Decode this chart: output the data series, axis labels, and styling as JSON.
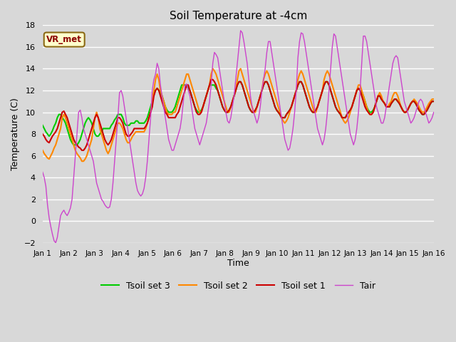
{
  "title": "Soil Temperature at -4cm",
  "xlabel": "Time",
  "ylabel": "Temperature (C)",
  "ylim": [
    -2,
    18
  ],
  "xlim": [
    0,
    15
  ],
  "background_color": "#d8d8d8",
  "plot_bg_color": "#d8d8d8",
  "grid_color": "white",
  "yticks": [
    -2,
    0,
    2,
    4,
    6,
    8,
    10,
    12,
    14,
    16,
    18
  ],
  "annotation_text": "VR_met",
  "annotation_bg": "#ffffcc",
  "annotation_border": "#8b6914",
  "annotation_text_color": "#8b0000",
  "tick_labels": [
    "Jan 1",
    "Jan 2",
    "Jan 3",
    "Jan 4",
    "Jan 5",
    "Jan 6",
    "Jan 7",
    "Jan 8",
    "Jan 9",
    "Jan 10",
    "Jan 11",
    "Jan 12",
    "Jan 13",
    "Jan 14",
    "Jan 15",
    "Jan 16"
  ],
  "series": {
    "Tair": {
      "color": "#cc44cc",
      "lw": 1.0
    },
    "Tsoil set 1": {
      "color": "#cc0000",
      "lw": 1.5
    },
    "Tsoil set 2": {
      "color": "#ff8800",
      "lw": 1.5
    },
    "Tsoil set 3": {
      "color": "#00cc00",
      "lw": 1.5
    }
  },
  "legend_loc": "lower center",
  "legend_ncol": 4,
  "tair": [
    4.5,
    4.0,
    3.2,
    1.5,
    0.3,
    -0.5,
    -1.2,
    -1.8,
    -2.0,
    -1.5,
    -0.5,
    0.5,
    0.8,
    1.0,
    0.7,
    0.5,
    0.8,
    1.2,
    2.0,
    4.0,
    6.0,
    8.0,
    10.0,
    10.2,
    9.5,
    8.5,
    8.0,
    7.5,
    7.0,
    6.5,
    6.0,
    5.5,
    4.5,
    3.5,
    3.0,
    2.5,
    2.0,
    1.8,
    1.5,
    1.3,
    1.2,
    1.3,
    2.0,
    3.5,
    5.5,
    7.5,
    9.5,
    11.8,
    12.0,
    11.5,
    10.5,
    9.5,
    8.5,
    7.5,
    6.5,
    5.5,
    4.5,
    3.5,
    2.8,
    2.5,
    2.3,
    2.5,
    3.0,
    4.0,
    5.5,
    7.5,
    9.5,
    12.0,
    13.0,
    13.5,
    14.5,
    14.0,
    12.5,
    11.5,
    10.5,
    9.5,
    8.5,
    7.5,
    7.0,
    6.5,
    6.5,
    7.0,
    7.5,
    8.0,
    8.5,
    9.5,
    11.0,
    12.5,
    12.6,
    12.0,
    11.5,
    10.5,
    9.5,
    8.5,
    8.0,
    7.5,
    7.0,
    7.5,
    8.0,
    8.5,
    9.0,
    10.0,
    11.0,
    12.5,
    14.5,
    15.5,
    15.3,
    15.0,
    14.0,
    13.0,
    12.0,
    11.0,
    10.0,
    9.2,
    9.0,
    9.5,
    10.5,
    11.5,
    13.0,
    14.5,
    16.0,
    17.5,
    17.3,
    16.5,
    15.5,
    14.5,
    13.0,
    11.5,
    10.5,
    10.0,
    9.5,
    9.0,
    9.5,
    10.5,
    12.0,
    13.0,
    14.0,
    15.5,
    16.5,
    16.5,
    15.5,
    14.5,
    13.5,
    12.5,
    11.5,
    10.5,
    9.5,
    8.5,
    7.5,
    7.0,
    6.5,
    6.7,
    7.5,
    8.5,
    10.0,
    12.0,
    15.0,
    16.5,
    17.3,
    17.2,
    16.5,
    15.5,
    14.5,
    13.5,
    12.5,
    11.5,
    10.5,
    9.5,
    8.5,
    8.0,
    7.5,
    7.0,
    7.5,
    8.5,
    10.0,
    12.0,
    14.0,
    16.0,
    17.2,
    17.0,
    16.0,
    15.0,
    14.0,
    13.0,
    12.0,
    11.0,
    10.0,
    9.0,
    8.0,
    7.5,
    7.0,
    7.5,
    8.5,
    10.0,
    12.0,
    14.5,
    17.0,
    17.0,
    16.5,
    15.5,
    14.5,
    13.5,
    12.5,
    11.5,
    10.5,
    10.0,
    9.5,
    9.0,
    9.0,
    9.5,
    10.5,
    11.5,
    12.5,
    13.5,
    14.5,
    15.0,
    15.2,
    15.0,
    14.0,
    13.0,
    12.0,
    11.0,
    10.5,
    10.0,
    9.5,
    9.0,
    9.2,
    9.5,
    10.0,
    10.5,
    11.0,
    11.2,
    11.0,
    10.5,
    10.0,
    9.5,
    9.0,
    9.2,
    9.5,
    10.0
  ],
  "tsoil1": [
    8.0,
    7.8,
    7.5,
    7.3,
    7.2,
    7.5,
    7.8,
    8.0,
    8.2,
    8.5,
    9.0,
    9.5,
    10.0,
    10.1,
    9.8,
    9.5,
    9.0,
    8.5,
    8.0,
    7.5,
    7.2,
    7.0,
    6.8,
    6.7,
    6.5,
    6.5,
    6.7,
    7.0,
    7.5,
    8.0,
    8.5,
    9.0,
    9.5,
    9.8,
    9.5,
    9.0,
    8.5,
    8.0,
    7.5,
    7.2,
    7.0,
    7.2,
    7.5,
    8.0,
    8.5,
    9.0,
    9.5,
    9.5,
    9.3,
    9.0,
    8.5,
    8.0,
    7.8,
    7.8,
    8.0,
    8.2,
    8.5,
    8.5,
    8.5,
    8.5,
    8.5,
    8.5,
    8.5,
    8.7,
    9.0,
    9.5,
    10.0,
    10.5,
    11.5,
    12.0,
    12.2,
    12.0,
    11.5,
    11.0,
    10.5,
    10.0,
    9.8,
    9.5,
    9.5,
    9.5,
    9.5,
    9.5,
    9.8,
    10.0,
    10.5,
    11.0,
    11.5,
    12.0,
    12.5,
    12.5,
    12.0,
    11.5,
    11.0,
    10.5,
    10.0,
    9.8,
    9.8,
    10.0,
    10.5,
    11.0,
    11.5,
    12.0,
    12.5,
    13.0,
    13.0,
    12.8,
    12.5,
    12.0,
    11.5,
    11.0,
    10.5,
    10.2,
    10.0,
    10.0,
    10.2,
    10.5,
    11.0,
    11.5,
    12.0,
    12.5,
    12.8,
    12.8,
    12.5,
    12.0,
    11.5,
    11.0,
    10.5,
    10.2,
    10.0,
    10.0,
    10.2,
    10.5,
    11.0,
    11.5,
    12.0,
    12.5,
    12.8,
    12.8,
    12.5,
    12.0,
    11.5,
    11.0,
    10.5,
    10.2,
    10.0,
    9.8,
    9.5,
    9.5,
    9.5,
    9.8,
    10.0,
    10.2,
    10.5,
    11.0,
    11.5,
    12.0,
    12.5,
    12.8,
    12.8,
    12.5,
    12.0,
    11.5,
    11.0,
    10.5,
    10.2,
    10.0,
    10.0,
    10.2,
    10.5,
    11.0,
    11.5,
    12.0,
    12.5,
    12.8,
    12.8,
    12.5,
    12.0,
    11.5,
    11.0,
    10.5,
    10.2,
    10.0,
    9.8,
    9.5,
    9.5,
    9.5,
    9.8,
    10.0,
    10.2,
    10.5,
    11.0,
    11.5,
    12.0,
    12.2,
    12.0,
    11.5,
    11.0,
    10.5,
    10.2,
    10.0,
    9.8,
    9.8,
    10.0,
    10.5,
    11.0,
    11.5,
    11.5,
    11.2,
    11.0,
    10.8,
    10.5,
    10.5,
    10.5,
    10.8,
    11.0,
    11.2,
    11.2,
    11.0,
    10.8,
    10.5,
    10.2,
    10.0,
    10.0,
    10.2,
    10.5,
    10.8,
    11.0,
    11.0,
    10.8,
    10.5,
    10.2,
    10.0,
    9.8,
    9.8,
    10.0,
    10.2,
    10.5,
    10.8,
    11.0,
    11.0
  ],
  "tsoil2": [
    6.5,
    6.2,
    6.0,
    5.8,
    5.7,
    6.0,
    6.3,
    6.7,
    7.0,
    7.5,
    8.0,
    8.5,
    9.5,
    9.8,
    9.5,
    9.0,
    8.5,
    8.0,
    7.5,
    7.0,
    6.5,
    6.2,
    6.0,
    5.8,
    5.5,
    5.5,
    5.7,
    6.0,
    6.5,
    7.0,
    7.5,
    8.5,
    9.5,
    10.0,
    9.5,
    8.5,
    8.0,
    7.5,
    7.0,
    6.5,
    6.2,
    6.5,
    7.0,
    7.5,
    8.0,
    8.5,
    9.0,
    9.0,
    8.8,
    8.5,
    8.0,
    7.5,
    7.2,
    7.2,
    7.5,
    7.8,
    8.0,
    8.2,
    8.2,
    8.2,
    8.2,
    8.2,
    8.2,
    8.5,
    9.0,
    9.5,
    10.0,
    11.0,
    12.0,
    13.0,
    13.5,
    13.0,
    12.0,
    11.5,
    11.0,
    10.5,
    10.0,
    9.8,
    9.8,
    9.8,
    10.0,
    10.0,
    10.5,
    11.0,
    11.5,
    12.0,
    12.5,
    13.0,
    13.5,
    13.5,
    13.0,
    12.5,
    12.0,
    11.5,
    11.0,
    10.5,
    10.0,
    10.0,
    10.5,
    11.0,
    11.5,
    12.0,
    12.5,
    13.5,
    14.0,
    13.8,
    13.5,
    13.0,
    12.5,
    12.0,
    11.5,
    11.0,
    10.5,
    10.0,
    10.0,
    10.5,
    11.0,
    11.5,
    12.0,
    13.0,
    13.8,
    14.0,
    13.5,
    13.0,
    12.5,
    12.0,
    11.5,
    11.0,
    10.5,
    10.0,
    10.0,
    10.5,
    11.0,
    11.5,
    12.0,
    13.0,
    13.5,
    13.8,
    13.5,
    13.0,
    12.5,
    12.0,
    11.5,
    11.0,
    10.5,
    10.0,
    9.5,
    9.2,
    9.0,
    9.2,
    9.5,
    10.0,
    10.5,
    11.0,
    11.5,
    12.0,
    13.0,
    13.5,
    13.8,
    13.5,
    13.0,
    12.5,
    12.0,
    11.5,
    11.0,
    10.5,
    10.0,
    10.0,
    10.5,
    11.0,
    11.5,
    12.0,
    13.0,
    13.5,
    13.8,
    13.5,
    13.0,
    12.5,
    12.0,
    11.5,
    11.0,
    10.5,
    10.0,
    9.5,
    9.2,
    9.0,
    9.2,
    9.5,
    10.0,
    10.5,
    11.0,
    11.5,
    12.0,
    12.5,
    12.5,
    12.0,
    11.5,
    11.0,
    10.5,
    10.0,
    9.8,
    9.8,
    10.0,
    10.5,
    11.0,
    11.5,
    11.8,
    11.5,
    11.0,
    10.8,
    10.5,
    10.5,
    10.8,
    11.0,
    11.5,
    11.8,
    11.8,
    11.5,
    11.0,
    10.5,
    10.2,
    10.0,
    10.0,
    10.2,
    10.5,
    10.8,
    11.0,
    11.2,
    11.0,
    10.8,
    10.5,
    10.2,
    10.0,
    10.0,
    10.2,
    10.5,
    10.8,
    11.0,
    11.2,
    11.2
  ],
  "tsoil3": [
    8.8,
    8.5,
    8.2,
    8.0,
    7.8,
    8.0,
    8.3,
    8.7,
    9.0,
    9.5,
    9.8,
    9.8,
    9.5,
    9.3,
    9.0,
    8.5,
    8.0,
    7.5,
    7.2,
    7.0,
    7.0,
    7.0,
    7.2,
    7.5,
    8.0,
    8.5,
    9.0,
    9.3,
    9.5,
    9.3,
    9.0,
    8.5,
    8.0,
    7.8,
    7.8,
    8.0,
    8.2,
    8.5,
    8.5,
    8.5,
    8.5,
    8.5,
    8.8,
    9.0,
    9.3,
    9.5,
    9.8,
    9.8,
    9.8,
    9.5,
    9.0,
    8.8,
    8.8,
    8.8,
    9.0,
    9.0,
    9.0,
    9.2,
    9.2,
    9.0,
    9.0,
    9.0,
    9.0,
    9.2,
    9.5,
    10.0,
    10.5,
    11.0,
    11.8,
    12.0,
    12.2,
    12.0,
    11.8,
    11.5,
    11.0,
    10.5,
    10.2,
    10.0,
    10.0,
    10.0,
    10.2,
    10.5,
    11.0,
    11.5,
    12.0,
    12.5,
    12.5,
    12.5,
    12.5,
    12.2,
    12.0,
    11.5,
    11.0,
    10.5,
    10.2,
    10.0,
    10.0,
    10.2,
    10.5,
    11.0,
    11.5,
    12.0,
    12.5,
    12.5,
    12.5,
    12.5,
    12.2,
    12.0,
    11.5,
    11.0,
    10.5,
    10.2,
    10.0,
    10.0,
    10.2,
    10.5,
    11.0,
    11.5,
    12.0,
    12.5,
    12.8,
    12.8,
    12.5,
    12.0,
    11.5,
    11.0,
    10.5,
    10.2,
    10.0,
    10.0,
    10.2,
    10.5,
    11.0,
    11.5,
    12.0,
    12.5,
    12.8,
    12.8,
    12.5,
    12.0,
    11.5,
    11.0,
    10.5,
    10.2,
    10.0,
    9.8,
    9.5,
    9.5,
    9.5,
    9.8,
    10.0,
    10.2,
    10.5,
    11.0,
    11.5,
    12.0,
    12.5,
    12.8,
    12.8,
    12.5,
    12.0,
    11.5,
    11.0,
    10.5,
    10.2,
    10.0,
    10.0,
    10.2,
    10.5,
    11.0,
    11.5,
    12.0,
    12.5,
    12.8,
    12.8,
    12.5,
    12.0,
    11.5,
    11.0,
    10.5,
    10.2,
    10.0,
    9.8,
    9.5,
    9.5,
    9.5,
    9.8,
    10.0,
    10.2,
    10.5,
    11.0,
    11.5,
    12.0,
    12.2,
    12.0,
    11.8,
    11.5,
    11.0,
    10.5,
    10.2,
    10.0,
    10.0,
    10.2,
    10.5,
    11.0,
    11.5,
    11.5,
    11.2,
    11.0,
    10.8,
    10.5,
    10.5,
    10.5,
    10.8,
    11.0,
    11.2,
    11.2,
    11.0,
    10.8,
    10.5,
    10.2,
    10.0,
    10.0,
    10.2,
    10.5,
    10.8,
    11.0,
    11.0,
    10.8,
    10.5,
    10.2,
    10.0,
    9.8,
    9.8,
    10.0,
    10.2,
    10.5,
    10.8,
    11.0,
    11.0
  ]
}
